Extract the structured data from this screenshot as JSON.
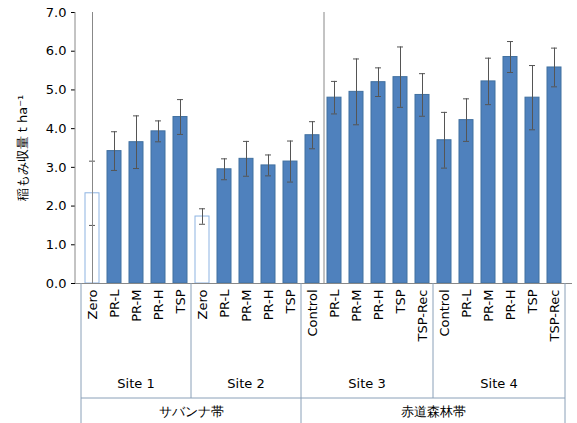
{
  "chart_data": {
    "type": "bar",
    "y_label": "稲もみ収量 t ha⁻¹",
    "categories": [
      "Zero",
      "PR-L",
      "PR-M",
      "PR-H",
      "TSP",
      "Zero",
      "PR-L",
      "PR-M",
      "PR-H",
      "TSP",
      "Control",
      "PR-L",
      "PR-M",
      "PR-H",
      "TSP",
      "TSP-Rec",
      "Control",
      "PR-L",
      "PR-M",
      "PR-H",
      "TSP",
      "TSP-Rec"
    ],
    "sites": [
      "Site 1",
      "Site 1",
      "Site 1",
      "Site 1",
      "Site 1",
      "Site 2",
      "Site 2",
      "Site 2",
      "Site 2",
      "Site 2",
      "Site 3",
      "Site 3",
      "Site 3",
      "Site 3",
      "Site 3",
      "Site 3",
      "Site 4",
      "Site 4",
      "Site 4",
      "Site 4",
      "Site 4",
      "Site 4"
    ],
    "zones": [
      "サバンナ帯",
      "サバンナ帯",
      "サバンナ帯",
      "サバンナ帯",
      "サバンナ帯",
      "サバンナ帯",
      "サバンナ帯",
      "サバンナ帯",
      "サバンナ帯",
      "サバンナ帯",
      "赤道森林帯",
      "赤道森林帯",
      "赤道森林帯",
      "赤道森林帯",
      "赤道森林帯",
      "赤道森林帯",
      "赤道森林帯",
      "赤道森林帯",
      "赤道森林帯",
      "赤道森林帯",
      "赤道森林帯",
      "赤道森林帯"
    ],
    "values": [
      2.33,
      3.42,
      3.65,
      3.93,
      4.3,
      1.73,
      2.95,
      3.22,
      3.05,
      3.15,
      3.83,
      4.8,
      4.95,
      5.2,
      5.33,
      4.87,
      3.7,
      4.22,
      5.22,
      5.85,
      4.8,
      5.58
    ],
    "errors": [
      0.83,
      0.5,
      0.68,
      0.27,
      0.45,
      0.2,
      0.27,
      0.45,
      0.27,
      0.53,
      0.35,
      0.42,
      0.85,
      0.37,
      0.78,
      0.55,
      0.72,
      0.55,
      0.6,
      0.4,
      0.83,
      0.5
    ],
    "colors": [
      "#ffffff",
      "#4f81bd",
      "#4f81bd",
      "#4f81bd",
      "#4f81bd",
      "#ffffff",
      "#4f81bd",
      "#4f81bd",
      "#4f81bd",
      "#4f81bd",
      "#4f81bd",
      "#4f81bd",
      "#4f81bd",
      "#4f81bd",
      "#4f81bd",
      "#4f81bd",
      "#4f81bd",
      "#4f81bd",
      "#4f81bd",
      "#4f81bd",
      "#4f81bd",
      "#4f81bd"
    ],
    "ylim": [
      0,
      7
    ],
    "yticks": [
      {
        "value": 0,
        "label": "0.0"
      },
      {
        "value": 1,
        "label": "1.0"
      },
      {
        "value": 2,
        "label": "2.0"
      },
      {
        "value": 3,
        "label": "3.0"
      },
      {
        "value": 4,
        "label": "4.0"
      },
      {
        "value": 5,
        "label": "5.0"
      },
      {
        "value": 6,
        "label": "6.0"
      },
      {
        "value": 7,
        "label": "7.0"
      }
    ],
    "grid": false
  }
}
